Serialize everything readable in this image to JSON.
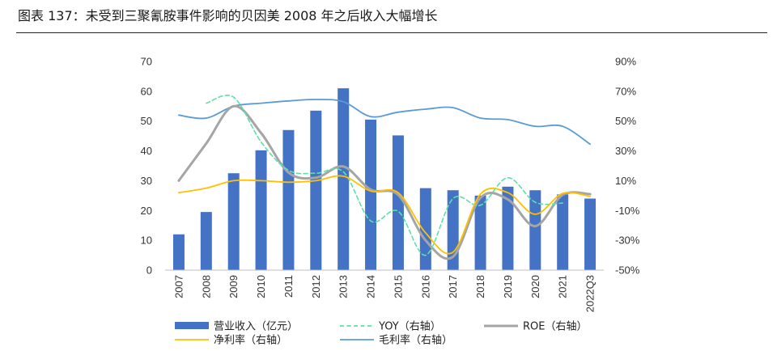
{
  "figure_title": "图表 137：未受到三聚氰胺事件影响的贝因美 2008 年之后收入大幅增长",
  "chart_data": {
    "type": "bar",
    "categories": [
      "2007",
      "2008",
      "2009",
      "2010",
      "2011",
      "2012",
      "2013",
      "2014",
      "2015",
      "2016",
      "2017",
      "2018",
      "2019",
      "2020",
      "2021",
      "2022Q3"
    ],
    "y_left": {
      "ylim": [
        0,
        70
      ],
      "ticks": [
        "0",
        "10",
        "20",
        "30",
        "40",
        "50",
        "60",
        "70"
      ]
    },
    "y_right": {
      "ylim": [
        -50,
        90
      ],
      "ticks": [
        "-50%",
        "-30%",
        "-10%",
        "10%",
        "30%",
        "50%",
        "70%",
        "90%"
      ]
    },
    "series": [
      {
        "name": "营业收入（亿元）",
        "type": "bar",
        "axis": "left",
        "color": "#4472C4",
        "values": [
          12.0,
          19.5,
          32.5,
          40.2,
          47.0,
          53.5,
          61.0,
          50.5,
          45.2,
          27.5,
          26.8,
          25.0,
          28.0,
          26.8,
          25.4,
          24.0
        ]
      },
      {
        "name": "YOY（右轴）",
        "type": "line",
        "axis": "right",
        "style": "dashed",
        "color": "#5DE0A8",
        "values": [
          null,
          62.0,
          66.0,
          36.0,
          17.0,
          15.0,
          16.0,
          -17.0,
          -10.5,
          -40.0,
          -2.0,
          -6.5,
          12.0,
          -4.5,
          -5.0,
          null
        ]
      },
      {
        "name": "ROE（右轴）",
        "type": "line",
        "axis": "right",
        "style": "solid",
        "color": "#A5A5A5",
        "values": [
          10.0,
          35.0,
          60.0,
          42.0,
          15.5,
          12.0,
          19.5,
          4.0,
          0.5,
          -30.0,
          -41.0,
          -1.5,
          -2.5,
          -20.5,
          0.5,
          1.0
        ]
      },
      {
        "name": "净利率（右轴）",
        "type": "line",
        "axis": "right",
        "style": "solid",
        "color": "#FFC000",
        "values": [
          2.0,
          5.0,
          10.0,
          10.0,
          9.0,
          10.0,
          13.0,
          3.0,
          2.0,
          -25.0,
          -38.0,
          1.0,
          2.0,
          -12.5,
          1.5,
          -0.5
        ]
      },
      {
        "name": "毛利率（右轴）",
        "type": "line",
        "axis": "right",
        "style": "solid",
        "color": "#5B9BD5",
        "values": [
          54.0,
          52.0,
          60.0,
          62.0,
          63.5,
          64.5,
          63.0,
          53.0,
          56.0,
          58.0,
          59.0,
          52.0,
          51.0,
          46.5,
          46.5,
          34.5
        ]
      }
    ],
    "grid": false,
    "legend": "bottom"
  }
}
